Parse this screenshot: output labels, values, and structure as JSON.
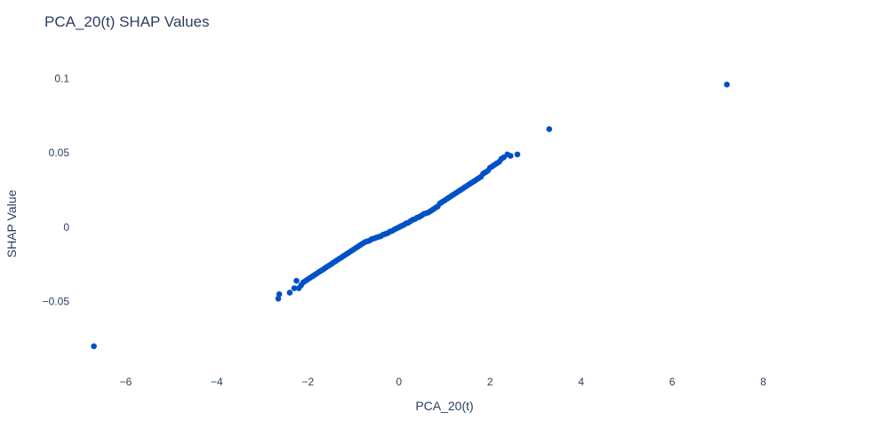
{
  "chart_data": {
    "type": "scatter",
    "title": "PCA_20(t) SHAP Values",
    "xlabel": "PCA_20(t)",
    "ylabel": "SHAP Value",
    "xlim": [
      -7.2,
      9.2
    ],
    "ylim": [
      -0.098,
      0.117
    ],
    "x_ticks": [
      -6,
      -4,
      -2,
      0,
      2,
      4,
      6,
      8
    ],
    "x_tick_labels": [
      "−6",
      "−4",
      "−2",
      "0",
      "2",
      "4",
      "6",
      "8"
    ],
    "y_ticks": [
      -0.05,
      0,
      0.05,
      0.1
    ],
    "y_tick_labels": [
      "−0.05",
      "0",
      "0.05",
      "0.1"
    ],
    "grid": false,
    "marker_color": "#0050c8",
    "series": [
      {
        "x": [
          -6.7,
          -2.65,
          -2.63,
          -2.4,
          -2.3,
          -2.25,
          -2.2,
          -2.15,
          -2.1,
          -2.05,
          -2.0,
          -1.95,
          -1.9,
          -1.85,
          -1.8,
          -1.75,
          -1.7,
          -1.65,
          -1.6,
          -1.55,
          -1.5,
          -1.45,
          -1.4,
          -1.35,
          -1.3,
          -1.25,
          -1.2,
          -1.15,
          -1.1,
          -1.05,
          -1.0,
          -0.95,
          -0.9,
          -0.85,
          -0.8,
          -0.75,
          -0.7,
          -0.65,
          -0.6,
          -0.55,
          -0.5,
          -0.45,
          -0.4,
          -0.35,
          -0.3,
          -0.25,
          -0.2,
          -0.15,
          -0.1,
          -0.05,
          0.0,
          0.05,
          0.1,
          0.15,
          0.2,
          0.25,
          0.3,
          0.35,
          0.4,
          0.45,
          0.5,
          0.55,
          0.6,
          0.65,
          0.7,
          0.75,
          0.8,
          0.85,
          0.9,
          0.95,
          1.0,
          1.05,
          1.1,
          1.15,
          1.2,
          1.25,
          1.3,
          1.35,
          1.4,
          1.45,
          1.5,
          1.55,
          1.6,
          1.65,
          1.7,
          1.75,
          1.8,
          1.85,
          1.9,
          1.95,
          2.0,
          2.05,
          2.1,
          2.15,
          2.2,
          2.25,
          2.3,
          2.38,
          2.45,
          2.6,
          3.3,
          7.2
        ],
        "y": [
          -0.08,
          -0.048,
          -0.045,
          -0.044,
          -0.041,
          -0.036,
          -0.041,
          -0.039,
          -0.037,
          -0.036,
          -0.035,
          -0.034,
          -0.033,
          -0.032,
          -0.031,
          -0.03,
          -0.029,
          -0.028,
          -0.027,
          -0.026,
          -0.025,
          -0.024,
          -0.023,
          -0.022,
          -0.021,
          -0.02,
          -0.019,
          -0.018,
          -0.017,
          -0.016,
          -0.015,
          -0.014,
          -0.013,
          -0.012,
          -0.011,
          -0.01,
          -0.0095,
          -0.009,
          -0.008,
          -0.0075,
          -0.007,
          -0.0065,
          -0.006,
          -0.005,
          -0.0045,
          -0.004,
          -0.003,
          -0.0025,
          -0.0015,
          -0.0008,
          0.0,
          0.0008,
          0.0015,
          0.0025,
          0.003,
          0.004,
          0.005,
          0.0055,
          0.0065,
          0.007,
          0.008,
          0.009,
          0.0095,
          0.01,
          0.011,
          0.012,
          0.013,
          0.014,
          0.016,
          0.017,
          0.018,
          0.019,
          0.02,
          0.021,
          0.022,
          0.023,
          0.024,
          0.025,
          0.026,
          0.027,
          0.028,
          0.029,
          0.03,
          0.031,
          0.032,
          0.033,
          0.034,
          0.036,
          0.037,
          0.038,
          0.04,
          0.041,
          0.042,
          0.043,
          0.044,
          0.046,
          0.047,
          0.049,
          0.048,
          0.049,
          0.066,
          0.096
        ]
      }
    ]
  }
}
